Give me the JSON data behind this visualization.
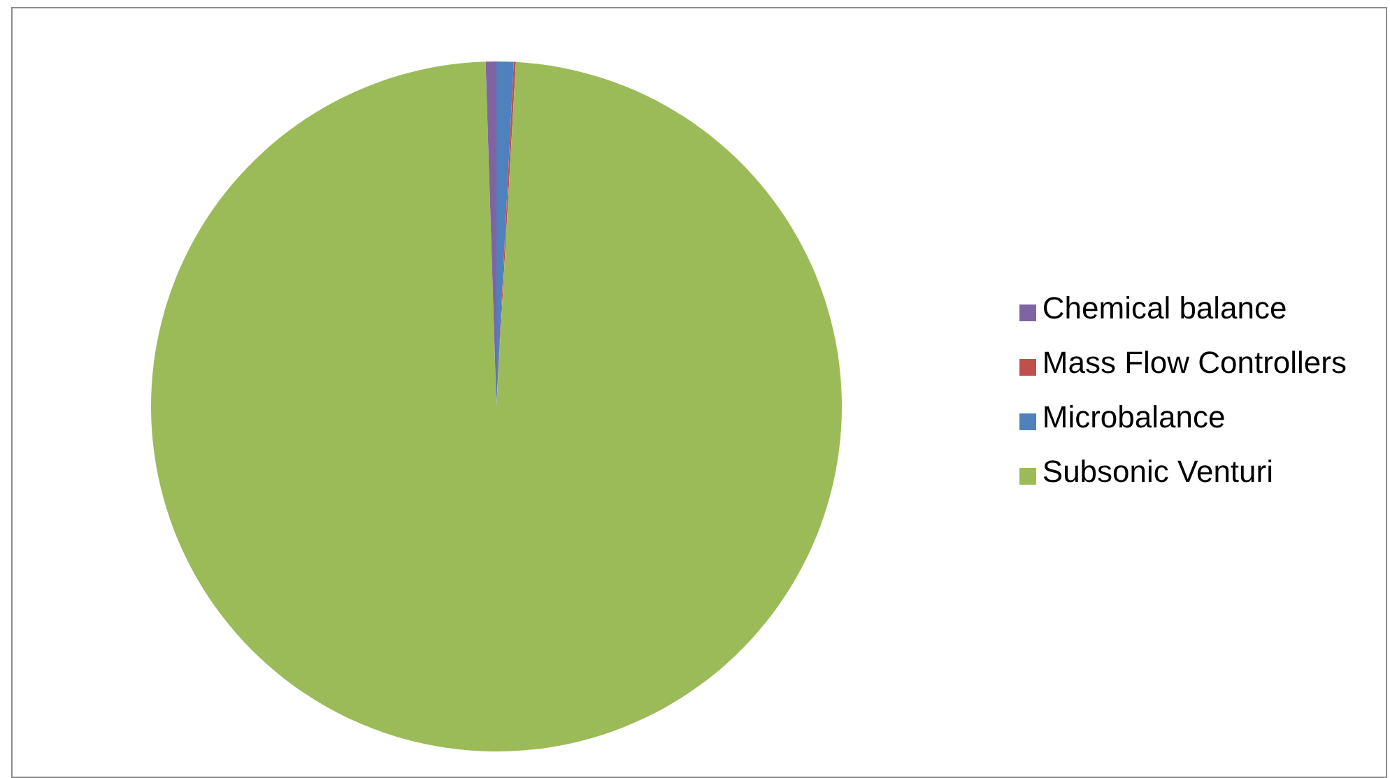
{
  "chart_data": {
    "type": "pie",
    "categories": [
      "Microbalance",
      "Mass Flow Controllers",
      "Subsonic Venturi",
      "Chemical balance"
    ],
    "values": [
      0.8,
      0.1,
      98.6,
      0.5
    ],
    "colors": [
      "#4f81bd",
      "#c0504d",
      "#9bbb59",
      "#8064a2"
    ],
    "legend": "right"
  }
}
